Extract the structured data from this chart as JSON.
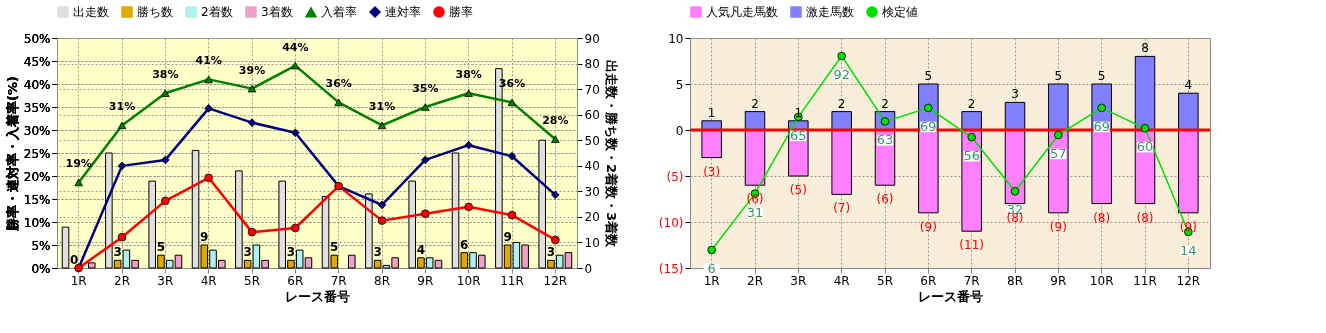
{
  "chart_data": [
    {
      "type": "bar",
      "categories": [
        "1R",
        "2R",
        "3R",
        "4R",
        "5R",
        "6R",
        "7R",
        "8R",
        "9R",
        "10R",
        "11R",
        "12R"
      ],
      "xlabel": "レース番号",
      "ylabel": "勝率・連対率・入着率(%)",
      "y2label": "出走数・勝ち数・2着数・3着数",
      "ylim": [
        0,
        50
      ],
      "yticks": [
        {
          "value": 0,
          "label": "0%"
        },
        {
          "value": 5,
          "label": "5%"
        },
        {
          "value": 10,
          "label": "10%"
        },
        {
          "value": 15,
          "label": "15%"
        },
        {
          "value": 20,
          "label": "20%"
        },
        {
          "value": 25,
          "label": "25%"
        },
        {
          "value": 30,
          "label": "30%"
        },
        {
          "value": 35,
          "label": "35%"
        },
        {
          "value": 40,
          "label": "40%"
        },
        {
          "value": 45,
          "label": "45%"
        },
        {
          "value": 50,
          "label": "50%"
        }
      ],
      "y2lim": [
        0,
        90
      ],
      "y2ticks": [
        0,
        10,
        20,
        30,
        40,
        50,
        60,
        70,
        80,
        90
      ],
      "grid": true,
      "legend": "top",
      "series": [
        {
          "name": "出走数",
          "axis": "y2",
          "color": "#e0e0e0",
          "values": [
            16,
            45,
            34,
            46,
            38,
            34,
            28,
            29,
            34,
            45,
            78,
            50
          ]
        },
        {
          "name": "勝ち数",
          "axis": "y2",
          "color": "#e0a800",
          "values": [
            0,
            3,
            5,
            9,
            3,
            3,
            5,
            3,
            4,
            6,
            9,
            3
          ],
          "value_labels": [
            "0",
            "3",
            "5",
            "9",
            "3",
            "3",
            "5",
            "3",
            "4",
            "6",
            "9",
            "3"
          ]
        },
        {
          "name": "2着数",
          "axis": "y2",
          "color": "#b0f0f0",
          "values": [
            0,
            7,
            3,
            7,
            9,
            7,
            0,
            1,
            4,
            6,
            10,
            5
          ]
        },
        {
          "name": "3着数",
          "axis": "y2",
          "color": "#f0a0c8",
          "values": [
            2,
            3,
            5,
            3,
            3,
            4,
            5,
            4,
            3,
            5,
            9,
            6
          ]
        },
        {
          "name": "入着率",
          "type": "line",
          "axis": "y",
          "color": "#008000",
          "marker": "triangle",
          "values": [
            18.6,
            31,
            38,
            41,
            39,
            44,
            36,
            31,
            35,
            38,
            36,
            28
          ],
          "value_labels": [
            "19%",
            "31%",
            "38%",
            "41%",
            "39%",
            "44%",
            "36%",
            "31%",
            "35%",
            "38%",
            "36%",
            "28%"
          ]
        },
        {
          "name": "連対率",
          "type": "line",
          "axis": "y",
          "color": "#000080",
          "marker": "diamond",
          "values": [
            0,
            22.2,
            23.5,
            34.7,
            31.6,
            29.4,
            17.8,
            13.7,
            23.5,
            26.7,
            24.3,
            15.9
          ]
        },
        {
          "name": "勝率",
          "type": "line",
          "axis": "y",
          "color": "#ff0000",
          "marker": "circle",
          "values": [
            0,
            6.7,
            14.6,
            19.6,
            7.8,
            8.7,
            17.8,
            10.3,
            11.8,
            13.3,
            11.5,
            6.1
          ]
        }
      ]
    },
    {
      "type": "bar",
      "stacked": true,
      "categories": [
        "1R",
        "2R",
        "3R",
        "4R",
        "5R",
        "6R",
        "7R",
        "8R",
        "9R",
        "10R",
        "11R",
        "12R"
      ],
      "xlabel": "レース番号",
      "ylim": [
        -15,
        10
      ],
      "yticks": [
        {
          "value": -15,
          "label": "(15)"
        },
        {
          "value": -10,
          "label": "(10)"
        },
        {
          "value": -5,
          "label": "(5)"
        },
        0,
        5,
        10
      ],
      "y2lim": [
        -2,
        100
      ],
      "grid": true,
      "legend": "top",
      "ref_lines": [
        {
          "axis": "y",
          "value": 0,
          "color": "#ff0000"
        }
      ],
      "series": [
        {
          "name": "人気凡走馬数",
          "axis": "y",
          "color": "#ff80ff",
          "values": [
            -3,
            -6,
            -5,
            -7,
            -6,
            -9,
            -11,
            -8,
            -9,
            -8,
            -8,
            -9
          ],
          "value_labels": [
            "(3)",
            "(6)",
            "(5)",
            "(7)",
            "(6)",
            "(9)",
            "(11)",
            "(8)",
            "(9)",
            "(8)",
            "(8)",
            "(9)"
          ]
        },
        {
          "name": "激走馬数",
          "axis": "y",
          "color": "#8080ff",
          "values": [
            1,
            2,
            1,
            2,
            2,
            5,
            2,
            3,
            5,
            5,
            8,
            4
          ],
          "value_labels": [
            "1",
            "2",
            "1",
            "2",
            "2",
            "5",
            "2",
            "3",
            "5",
            "5",
            "8",
            "4"
          ]
        },
        {
          "name": "検定値",
          "type": "line",
          "axis": "y2",
          "color": "#00e000",
          "marker": "circle",
          "values": [
            6,
            31,
            65,
            92,
            63,
            69,
            56,
            32,
            57,
            69,
            60,
            14
          ],
          "value_labels": [
            "6",
            "31",
            "65",
            "92",
            "63",
            "69",
            "56",
            "32",
            "57",
            "69",
            "60",
            "14"
          ]
        }
      ]
    }
  ]
}
